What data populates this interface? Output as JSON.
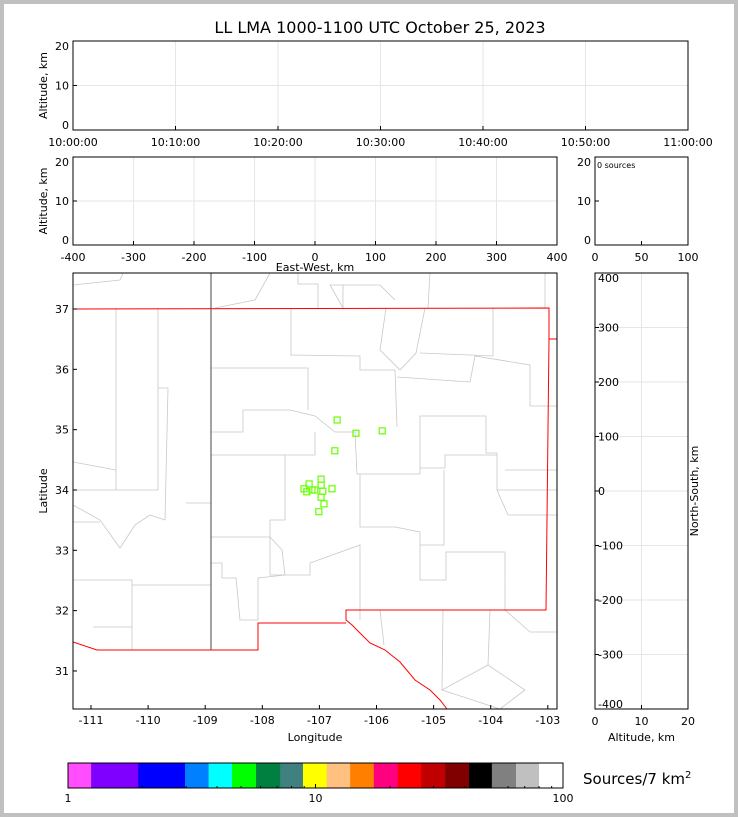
{
  "title": "LL LMA 1000-1100 UTC October 25, 2023",
  "colors": {
    "source_marker": "#66ff00",
    "state_border": "#ff0000",
    "county_line": "#c8c8c8"
  },
  "chart_data": [
    {
      "id": "time_height",
      "type": "scatter",
      "ylabel": "Altitude, km",
      "ylim": [
        0,
        20
      ],
      "yticks": [
        0,
        10,
        20
      ],
      "xticks": [
        "10:00:00",
        "10:10:00",
        "10:20:00",
        "10:30:00",
        "10:40:00",
        "10:50:00",
        "11:00:00"
      ],
      "grid": true,
      "points": []
    },
    {
      "id": "ew_height",
      "type": "scatter",
      "ylabel": "Altitude, km",
      "xlabel": "East-West, km",
      "xlim": [
        -400,
        400
      ],
      "ylim": [
        0,
        20
      ],
      "xticks": [
        -400,
        -300,
        -200,
        -100,
        0,
        100,
        200,
        300,
        400
      ],
      "yticks": [
        0,
        10,
        20
      ],
      "grid": true,
      "points": []
    },
    {
      "id": "histogram",
      "type": "bar",
      "annotation": "0 sources",
      "xlim": [
        0,
        100
      ],
      "ylim": [
        0,
        20
      ],
      "xticks": [
        0,
        50,
        100
      ],
      "yticks": [
        0,
        10,
        20
      ]
    },
    {
      "id": "plan_view",
      "type": "scatter",
      "xlabel": "Longitude",
      "ylabel": "Latitude",
      "xlim": [
        -111.55,
        -102.95
      ],
      "ylim": [
        30.4,
        37.6
      ],
      "xticks": [
        -111,
        -110,
        -109,
        -108,
        -107,
        -106,
        -105,
        -104,
        -103
      ],
      "yticks": [
        31,
        32,
        33,
        34,
        35,
        36,
        37
      ],
      "points": [
        [
          -106.69,
          35.16
        ],
        [
          -106.36,
          34.94
        ],
        [
          -105.9,
          34.98
        ],
        [
          -106.73,
          34.65
        ],
        [
          -106.97,
          34.18
        ],
        [
          -106.97,
          34.08
        ],
        [
          -107.18,
          34.1
        ],
        [
          -107.27,
          34.02
        ],
        [
          -107.13,
          34.0
        ],
        [
          -107.22,
          33.97
        ],
        [
          -107.08,
          34.0
        ],
        [
          -106.94,
          33.98
        ],
        [
          -106.78,
          34.02
        ],
        [
          -106.97,
          33.88
        ],
        [
          -106.92,
          33.77
        ],
        [
          -107.01,
          33.64
        ]
      ]
    },
    {
      "id": "ns_height",
      "type": "scatter",
      "xlabel": "Altitude, km",
      "ylabel": "North-South, km",
      "xlim": [
        0,
        20
      ],
      "ylim": [
        -400,
        400
      ],
      "xticks": [
        0,
        10,
        20
      ],
      "yticks": [
        -400,
        -300,
        -200,
        -100,
        0,
        100,
        200,
        300,
        400
      ],
      "grid": true,
      "points": []
    }
  ],
  "colorbar": {
    "label": "Sources/7 km",
    "label_sup": "2",
    "scale": "log",
    "ticks": [
      "1",
      "10",
      "100"
    ],
    "bounds": [
      1,
      1.24,
      1.92,
      2.97,
      3.7,
      4.6,
      5.75,
      7.2,
      8.9,
      11.1,
      13.8,
      17.2,
      21.5,
      26.7,
      33.4,
      41.7,
      51.6,
      64.6,
      80,
      100
    ],
    "colors": [
      "#ff4dff",
      "#8000ff",
      "#0000ff",
      "#0080ff",
      "#00ffff",
      "#00ff00",
      "#008040",
      "#408080",
      "#ffff00",
      "#ffc080",
      "#ff8000",
      "#ff0080",
      "#ff0000",
      "#c00000",
      "#800000",
      "#000000",
      "#808080",
      "#c0c0c0",
      "#ffffff"
    ]
  }
}
